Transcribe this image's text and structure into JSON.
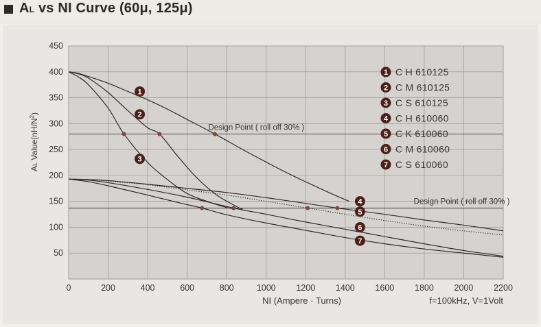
{
  "page": {
    "title": "AL vs NI Curve (60μ, 125μ)",
    "title_prefix": "A",
    "title_sub": "L",
    "title_rest": " vs NI Curve (60μ, 125μ)"
  },
  "chart_data": {
    "type": "line",
    "title": "AL vs NI Curve (60μ, 125μ)",
    "xlabel": "NI (Ampere · Turns)",
    "ylabel": "AL Value(nH/N²)",
    "ylabel_prefix": "A",
    "ylabel_sub": "L",
    "ylabel_rest": " Value(nH/N",
    "ylabel_sup": "2",
    "ylabel_close": ")",
    "conditions": "f=100kHz, V=1Volt",
    "xlim": [
      0,
      2200
    ],
    "ylim": [
      0,
      450
    ],
    "xticks": [
      0,
      200,
      400,
      600,
      800,
      1000,
      1200,
      1400,
      1600,
      1800,
      2000,
      2200
    ],
    "yticks": [
      50,
      100,
      150,
      200,
      250,
      300,
      350,
      400,
      450
    ],
    "grid": true,
    "legend_position": "top-right",
    "design_points": [
      {
        "label": "Design Point ( roll off 30% )",
        "y": 280
      },
      {
        "label": "Design Point ( roll off 30% )",
        "y": 137
      }
    ],
    "series": [
      {
        "name": "CH610125",
        "marker": "1",
        "style": "solid",
        "x": [
          0,
          50,
          100,
          200,
          300,
          400,
          500,
          600,
          740,
          900,
          1100,
          1300,
          1420
        ],
        "y": [
          400,
          397,
          391,
          378,
          362,
          346,
          328,
          308,
          280,
          246,
          206,
          170,
          150
        ]
      },
      {
        "name": "CM610125",
        "marker": "2",
        "style": "solid",
        "x": [
          0,
          50,
          100,
          200,
          300,
          400,
          460,
          550,
          650,
          750,
          850,
          880
        ],
        "y": [
          400,
          396,
          388,
          360,
          325,
          292,
          280,
          238,
          195,
          162,
          140,
          135
        ]
      },
      {
        "name": "CS610125",
        "marker": "3",
        "style": "solid",
        "x": [
          0,
          50,
          100,
          200,
          280,
          400,
          500,
          600,
          700,
          800,
          830
        ],
        "y": [
          400,
          390,
          375,
          330,
          280,
          225,
          192,
          165,
          150,
          138,
          136
        ]
      },
      {
        "name": "CH610060",
        "marker": "4",
        "style": "solid",
        "x": [
          0,
          100,
          200,
          400,
          600,
          800,
          1000,
          1200,
          1360,
          1600,
          1800,
          2000,
          2200
        ],
        "y": [
          193,
          192,
          190,
          183,
          175,
          167,
          157,
          146,
          137,
          125,
          114,
          104,
          93
        ]
      },
      {
        "name": "CK610060",
        "marker": "5",
        "style": "dotted",
        "x": [
          0,
          100,
          200,
          400,
          600,
          800,
          1000,
          1210,
          1400,
          1600,
          1800,
          2000,
          2200
        ],
        "y": [
          193,
          192,
          189,
          182,
          172,
          162,
          150,
          137,
          125,
          113,
          102,
          93,
          85
        ]
      },
      {
        "name": "CM610060",
        "marker": "6",
        "style": "solid",
        "x": [
          0,
          100,
          200,
          400,
          600,
          835,
          1000,
          1200,
          1400,
          1600,
          1800,
          2000,
          2200
        ],
        "y": [
          193,
          191,
          186,
          173,
          158,
          137,
          125,
          110,
          96,
          82,
          68,
          55,
          44
        ]
      },
      {
        "name": "CS610060",
        "marker": "7",
        "style": "solid",
        "x": [
          0,
          100,
          200,
          400,
          550,
          675,
          800,
          1000,
          1200,
          1400,
          1600,
          1800,
          2000,
          2200
        ],
        "y": [
          193,
          188,
          180,
          162,
          148,
          137,
          124,
          108,
          94,
          80,
          68,
          58,
          50,
          42
        ]
      }
    ],
    "marker_points": [
      {
        "series": "CH610125",
        "x": 740,
        "y": 280
      },
      {
        "series": "CM610125",
        "x": 460,
        "y": 280
      },
      {
        "series": "CS610125",
        "x": 280,
        "y": 280
      },
      {
        "series": "CH610060",
        "x": 1360,
        "y": 137
      },
      {
        "series": "CK610060",
        "x": 1210,
        "y": 137
      },
      {
        "series": "CM610060",
        "x": 835,
        "y": 137
      },
      {
        "series": "CS610060",
        "x": 675,
        "y": 137
      }
    ],
    "curve_labels": [
      {
        "marker": "1",
        "x": 360,
        "y": 362
      },
      {
        "marker": "2",
        "x": 360,
        "y": 318
      },
      {
        "marker": "3",
        "x": 360,
        "y": 232
      },
      {
        "marker": "4",
        "x": 1475,
        "y": 150
      },
      {
        "marker": "5",
        "x": 1475,
        "y": 130
      },
      {
        "marker": "6",
        "x": 1475,
        "y": 100
      },
      {
        "marker": "7",
        "x": 1475,
        "y": 74
      }
    ],
    "legend": [
      {
        "marker": "1",
        "text": "C H 610125"
      },
      {
        "marker": "2",
        "text": "C M 610125"
      },
      {
        "marker": "3",
        "text": "C S 610125"
      },
      {
        "marker": "4",
        "text": "C H 610060"
      },
      {
        "marker": "5",
        "text": "C K 610060"
      },
      {
        "marker": "6",
        "text": "C M 610060"
      },
      {
        "marker": "7",
        "text": "C S 610060"
      }
    ],
    "colors": {
      "plot_bg": "#d6d2cf",
      "grid": "#a39d9a",
      "curve": "#2f2a27",
      "marker_badge": "#4b1f1a",
      "point": "#7a4a40"
    }
  }
}
